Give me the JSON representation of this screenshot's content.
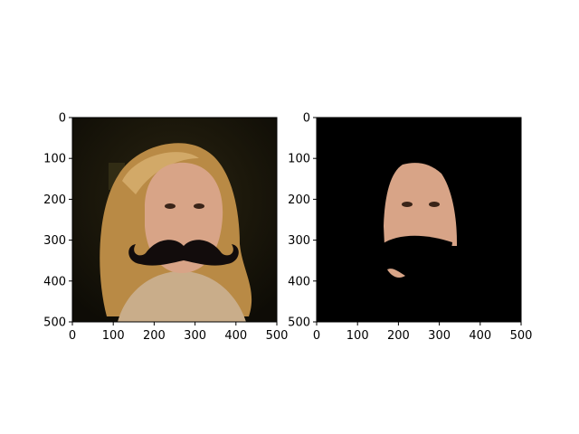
{
  "chart_data": [
    {
      "type": "image",
      "description_role": "left-panel",
      "xlim": [
        0,
        500
      ],
      "ylim": [
        500,
        0
      ],
      "x_ticks": [
        0,
        100,
        200,
        300,
        400,
        500
      ],
      "y_ticks": [
        0,
        100,
        200,
        300,
        400,
        500
      ],
      "x_tick_labels": [
        "0",
        "100",
        "200",
        "300",
        "400",
        "500"
      ],
      "y_tick_labels": [
        "0",
        "100",
        "200",
        "300",
        "400",
        "500"
      ],
      "title": "",
      "xlabel": "",
      "ylabel": "",
      "grid": false
    },
    {
      "type": "image",
      "description_role": "right-panel",
      "xlim": [
        0,
        500
      ],
      "ylim": [
        500,
        0
      ],
      "x_ticks": [
        0,
        100,
        200,
        300,
        400,
        500
      ],
      "y_ticks": [
        0,
        100,
        200,
        300,
        400,
        500
      ],
      "x_tick_labels": [
        "0",
        "100",
        "200",
        "300",
        "400",
        "500"
      ],
      "y_tick_labels": [
        "0",
        "100",
        "200",
        "300",
        "400",
        "500"
      ],
      "title": "",
      "xlabel": "",
      "ylabel": "",
      "grid": false
    }
  ],
  "colors": {
    "left_background": "#1a1608",
    "hair": "#b98a45",
    "skin": "#d8a487",
    "sweater": "#c9ad8a",
    "mustache": "#120c0c",
    "right_background": "#000000"
  }
}
